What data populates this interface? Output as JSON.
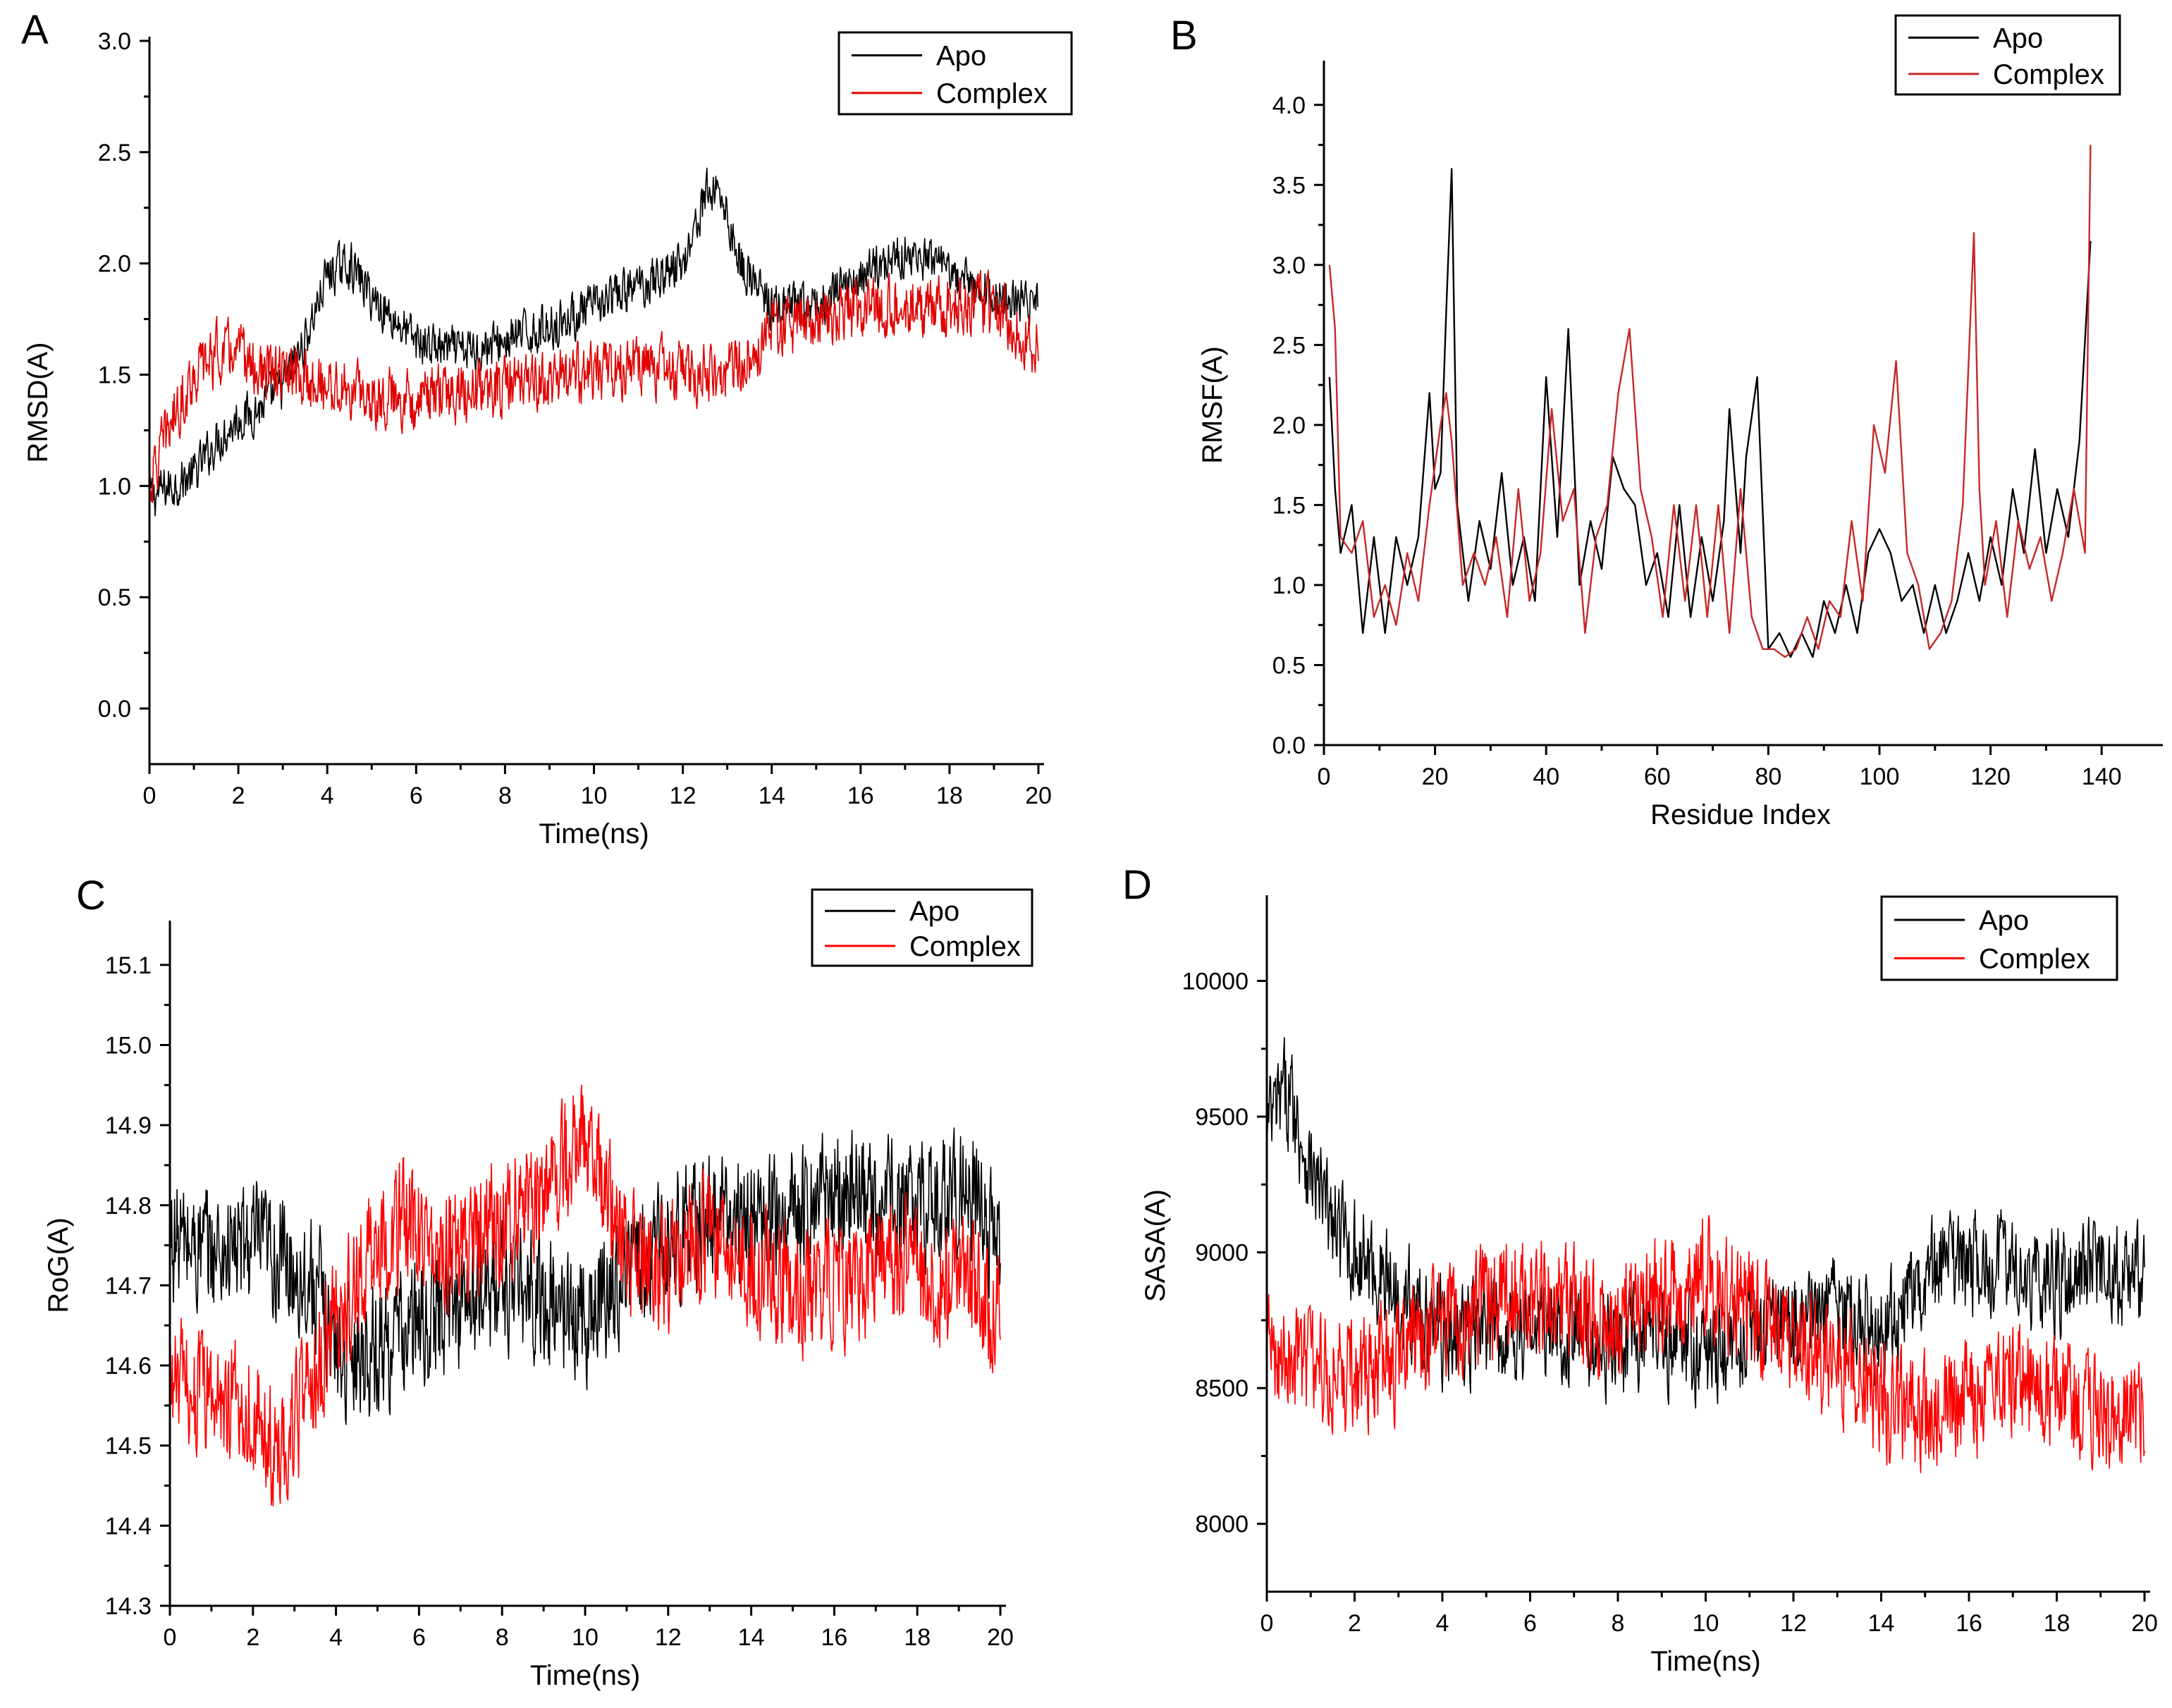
{
  "figure": {
    "colors": {
      "apo": "#000000",
      "complex": "#e00000"
    }
  },
  "chart_data": [
    {
      "panel": "A",
      "type": "line",
      "xlabel": "Time(ns)",
      "ylabel": "RMSD(A)",
      "xlim": [
        0,
        20
      ],
      "ylim": [
        -0.25,
        3.0
      ],
      "xticks": [
        0,
        2,
        4,
        6,
        8,
        10,
        12,
        14,
        16,
        18,
        20
      ],
      "yticks": [
        0.0,
        0.5,
        1.0,
        1.5,
        2.0,
        2.5,
        3.0
      ],
      "ytick_labels": [
        "0.0",
        "0.5",
        "1.0",
        "1.5",
        "2.0",
        "2.5",
        "3.0"
      ],
      "legend_position": "top-right",
      "grid": false,
      "series": [
        {
          "name": "Apo",
          "color": "#000000",
          "noise": 0.09,
          "x": [
            0,
            0.5,
            1,
            1.5,
            2,
            2.5,
            3,
            3.5,
            4,
            4.5,
            5,
            5.5,
            6,
            7,
            8,
            9,
            10,
            11,
            11.5,
            12,
            12.5,
            12.8,
            13.3,
            14,
            15,
            16,
            17,
            18,
            19,
            20
          ],
          "y": [
            0.95,
            1.0,
            1.05,
            1.2,
            1.3,
            1.35,
            1.45,
            1.65,
            1.95,
            2.0,
            1.85,
            1.75,
            1.65,
            1.6,
            1.65,
            1.72,
            1.8,
            1.9,
            1.95,
            2.0,
            2.3,
            2.35,
            2.0,
            1.8,
            1.8,
            1.95,
            2.05,
            1.95,
            1.85,
            1.82
          ]
        },
        {
          "name": "Complex",
          "color": "#e00000",
          "noise": 0.12,
          "x": [
            0,
            0.5,
            1,
            1.5,
            2,
            2.5,
            3,
            4,
            5,
            6,
            7,
            8,
            9,
            10,
            11,
            12,
            13,
            14,
            15,
            16,
            17,
            18,
            19,
            20
          ],
          "y": [
            1.0,
            1.3,
            1.5,
            1.6,
            1.6,
            1.5,
            1.5,
            1.45,
            1.4,
            1.4,
            1.42,
            1.45,
            1.48,
            1.5,
            1.55,
            1.5,
            1.5,
            1.7,
            1.75,
            1.8,
            1.82,
            1.8,
            1.8,
            1.62
          ]
        }
      ]
    },
    {
      "panel": "B",
      "type": "line",
      "xlabel": "Residue Index",
      "ylabel": "RMSF(A)",
      "xlim": [
        0,
        150
      ],
      "ylim": [
        0.0,
        4.25
      ],
      "xticks": [
        0,
        20,
        40,
        60,
        80,
        100,
        120,
        140
      ],
      "yticks": [
        0.0,
        0.5,
        1.0,
        1.5,
        2.0,
        2.5,
        3.0,
        3.5,
        4.0
      ],
      "ytick_labels": [
        "0.0",
        "0.5",
        "1.0",
        "1.5",
        "2.0",
        "2.5",
        "3.0",
        "3.5",
        "4.0"
      ],
      "legend_position": "top-right",
      "grid": false,
      "series": [
        {
          "name": "Apo",
          "color": "#000000",
          "noise": 0,
          "x": [
            1,
            2,
            3,
            5,
            7,
            9,
            11,
            13,
            15,
            17,
            19,
            20,
            21,
            22,
            23,
            24,
            26,
            28,
            30,
            32,
            34,
            36,
            38,
            40,
            42,
            44,
            46,
            48,
            50,
            52,
            54,
            56,
            58,
            60,
            62,
            64,
            66,
            68,
            70,
            72,
            73,
            75,
            76,
            78,
            80,
            82,
            84,
            86,
            88,
            90,
            92,
            94,
            96,
            98,
            100,
            102,
            104,
            106,
            108,
            110,
            112,
            114,
            116,
            118,
            120,
            122,
            124,
            126,
            128,
            130,
            132,
            134,
            136,
            138
          ],
          "y": [
            2.3,
            1.6,
            1.2,
            1.5,
            0.7,
            1.3,
            0.7,
            1.3,
            1.0,
            1.3,
            2.2,
            1.6,
            1.7,
            2.7,
            3.6,
            1.5,
            0.9,
            1.4,
            1.1,
            1.7,
            1.0,
            1.3,
            0.9,
            2.3,
            1.3,
            2.6,
            1.0,
            1.4,
            1.1,
            1.8,
            1.6,
            1.5,
            1.0,
            1.2,
            0.8,
            1.5,
            0.8,
            1.3,
            0.9,
            1.4,
            2.1,
            1.2,
            1.8,
            2.3,
            0.6,
            0.7,
            0.55,
            0.7,
            0.55,
            0.9,
            0.7,
            1.0,
            0.7,
            1.2,
            1.35,
            1.2,
            0.9,
            1.0,
            0.7,
            1.0,
            0.7,
            0.9,
            1.2,
            0.9,
            1.3,
            1.0,
            1.6,
            1.2,
            1.85,
            1.2,
            1.6,
            1.3,
            1.9,
            3.15
          ]
        },
        {
          "name": "Complex",
          "color": "#c62828",
          "noise": 0,
          "x": [
            1,
            2,
            3,
            5,
            7,
            9,
            11,
            13,
            15,
            17,
            19,
            21,
            22,
            23,
            25,
            27,
            29,
            31,
            33,
            35,
            37,
            39,
            41,
            43,
            45,
            47,
            49,
            51,
            53,
            55,
            57,
            59,
            61,
            63,
            65,
            67,
            69,
            71,
            73,
            75,
            77,
            79,
            81,
            83,
            85,
            87,
            89,
            91,
            93,
            95,
            97,
            99,
            101,
            103,
            105,
            107,
            109,
            111,
            113,
            115,
            117,
            118,
            119,
            121,
            123,
            125,
            127,
            129,
            131,
            133,
            135,
            137,
            138
          ],
          "y": [
            3.0,
            2.6,
            1.3,
            1.2,
            1.4,
            0.8,
            1.0,
            0.75,
            1.2,
            0.9,
            1.5,
            2.0,
            2.2,
            1.9,
            1.0,
            1.2,
            1.0,
            1.3,
            0.8,
            1.6,
            0.9,
            1.2,
            2.1,
            1.4,
            1.6,
            0.7,
            1.3,
            1.5,
            2.2,
            2.6,
            1.6,
            1.3,
            0.8,
            1.5,
            0.9,
            1.5,
            0.8,
            1.5,
            0.7,
            1.6,
            0.8,
            0.6,
            0.6,
            0.55,
            0.6,
            0.8,
            0.6,
            0.9,
            0.8,
            1.4,
            0.9,
            2.0,
            1.7,
            2.4,
            1.2,
            1.0,
            0.6,
            0.7,
            0.9,
            1.5,
            3.2,
            1.6,
            1.0,
            1.4,
            0.8,
            1.4,
            1.1,
            1.3,
            0.9,
            1.2,
            1.6,
            1.2,
            3.75
          ]
        }
      ]
    },
    {
      "panel": "C",
      "type": "line",
      "xlabel": "Time(ns)",
      "ylabel": "RoG(A)",
      "xlim": [
        0,
        20
      ],
      "ylim": [
        14.3,
        15.15
      ],
      "xticks": [
        0,
        2,
        4,
        6,
        8,
        10,
        12,
        14,
        16,
        18,
        20
      ],
      "yticks": [
        14.3,
        14.4,
        14.5,
        14.6,
        14.7,
        14.8,
        14.9,
        15.0,
        15.1
      ],
      "ytick_labels": [
        "14.3",
        "14.4",
        "14.5",
        "14.6",
        "14.7",
        "14.8",
        "14.9",
        "15.0",
        "15.1"
      ],
      "legend_position": "top-right",
      "grid": false,
      "series": [
        {
          "name": "Apo",
          "color": "#000000",
          "noise": 0.07,
          "x": [
            0,
            1,
            2,
            3,
            3.5,
            4,
            5,
            6,
            7,
            8,
            9,
            10,
            11,
            12,
            13,
            14,
            15,
            16,
            17,
            18,
            19,
            20
          ],
          "y": [
            14.76,
            14.74,
            14.75,
            14.72,
            14.7,
            14.62,
            14.62,
            14.65,
            14.68,
            14.7,
            14.68,
            14.66,
            14.72,
            14.76,
            14.78,
            14.78,
            14.8,
            14.82,
            14.8,
            14.8,
            14.82,
            14.75
          ]
        },
        {
          "name": "Complex",
          "color": "#ff0000",
          "noise": 0.07,
          "x": [
            0,
            1,
            2,
            2.5,
            3,
            4,
            5,
            6,
            7,
            8,
            9,
            10,
            11,
            12,
            13,
            14,
            15,
            16,
            17,
            18,
            19,
            20
          ],
          "y": [
            14.58,
            14.56,
            14.55,
            14.48,
            14.52,
            14.65,
            14.76,
            14.78,
            14.74,
            14.78,
            14.82,
            14.88,
            14.74,
            14.72,
            14.76,
            14.72,
            14.7,
            14.7,
            14.72,
            14.72,
            14.7,
            14.68
          ]
        }
      ]
    },
    {
      "panel": "D",
      "type": "line",
      "xlabel": "Time(ns)",
      "ylabel": "SASA(A)",
      "xlim": [
        0,
        20
      ],
      "ylim": [
        7750,
        10300
      ],
      "xticks": [
        0,
        2,
        4,
        6,
        8,
        10,
        12,
        14,
        16,
        18,
        20
      ],
      "yticks": [
        8000,
        8500,
        9000,
        9500,
        10000
      ],
      "ytick_labels": [
        "8000",
        "8500",
        "9000",
        "9500",
        "10000"
      ],
      "legend_position": "top-right",
      "grid": false,
      "series": [
        {
          "name": "Apo",
          "color": "#000000",
          "noise": 170,
          "x": [
            0,
            0.5,
            1,
            1.5,
            2,
            3,
            4,
            5,
            6,
            7,
            8,
            9,
            10,
            11,
            12,
            13,
            14,
            15,
            16,
            17,
            18,
            19,
            20
          ],
          "y": [
            9450,
            9600,
            9300,
            9100,
            9000,
            8850,
            8700,
            8700,
            8720,
            8700,
            8650,
            8700,
            8620,
            8700,
            8750,
            8800,
            8700,
            8900,
            8950,
            8950,
            8900,
            8950,
            8900
          ]
        },
        {
          "name": "Complex",
          "color": "#ff0000",
          "noise": 190,
          "x": [
            0,
            1,
            2,
            3,
            4,
            5,
            6,
            7,
            8,
            9,
            10,
            11,
            12,
            13,
            14,
            15,
            16,
            17,
            18,
            19,
            20
          ],
          "y": [
            8650,
            8600,
            8550,
            8600,
            8750,
            8800,
            8850,
            8800,
            8750,
            8850,
            8900,
            8800,
            8700,
            8600,
            8450,
            8400,
            8450,
            8550,
            8500,
            8400,
            8420
          ]
        }
      ]
    }
  ]
}
